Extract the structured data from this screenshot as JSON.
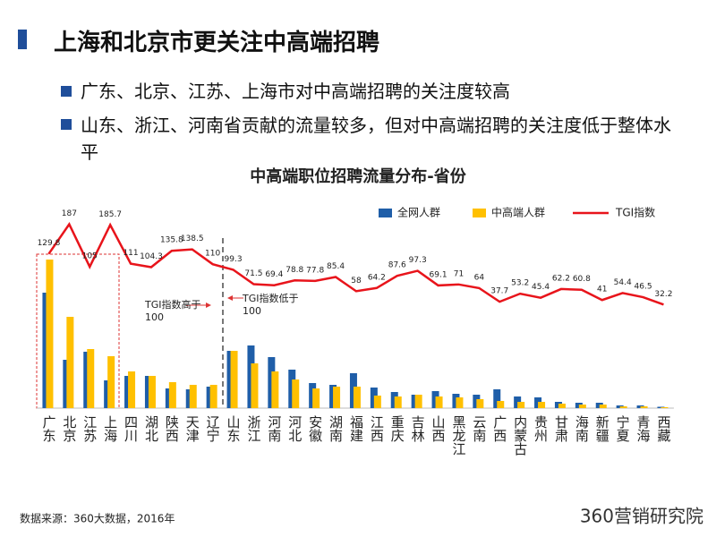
{
  "header": {
    "title": "上海和北京市更关注中高端招聘",
    "bullets": [
      "广东、北京、江苏、上海市对中高端招聘的关注度较高",
      "山东、浙江、河南省贡献的流量较多，但对中高端招聘的关注度低于整体水平"
    ]
  },
  "chart_data": {
    "type": "bar",
    "title": "中高端职位招聘流量分布-省份",
    "categories": [
      "广东",
      "北京",
      "江苏",
      "上海",
      "四川",
      "湖北",
      "陕西",
      "天津",
      "辽宁",
      "山东",
      "浙江",
      "河南",
      "河北",
      "安徽",
      "湖南",
      "福建",
      "江西",
      "重庆",
      "吉林",
      "山西",
      "黑龙江",
      "云南",
      "广西",
      "内蒙古",
      "贵州",
      "甘肃",
      "海南",
      "新疆",
      "宁夏",
      "青海",
      "西藏"
    ],
    "series": [
      {
        "name": "全网人群",
        "color": "#1f5ea8",
        "values": [
          129,
          54,
          63,
          31,
          36,
          36,
          22,
          21,
          24,
          64,
          70,
          57,
          43,
          28,
          26,
          39,
          23,
          18,
          15,
          19,
          16,
          15,
          21,
          13,
          12,
          7,
          6,
          6,
          3,
          3,
          1.5
        ]
      },
      {
        "name": "中高端人群",
        "color": "#ffc000",
        "values": [
          166,
          102,
          66,
          58,
          41,
          36,
          29,
          26,
          26,
          64,
          50,
          41,
          32,
          22,
          24,
          24,
          14,
          13,
          15,
          13,
          12,
          10,
          8,
          7,
          7,
          5,
          4,
          4,
          2,
          2,
          1
        ]
      },
      {
        "name": "TGI指数",
        "color": "#e8141b",
        "type": "line",
        "axis": "y2",
        "values": [
          129.8,
          187.0,
          105.0,
          185.7,
          111.0,
          104.3,
          135.8,
          138.5,
          110.0,
          99.3,
          71.5,
          69.4,
          78.8,
          77.8,
          85.4,
          58.0,
          64.2,
          87.6,
          97.3,
          69.1,
          71.0,
          64.0,
          37.7,
          53.2,
          45.4,
          62.2,
          60.8,
          41.0,
          54.4,
          46.5,
          32.2
        ]
      }
    ],
    "ylim": [
      0,
      200
    ],
    "y2lim": [
      0,
      200
    ],
    "annotations": [
      "TGI指数高于100",
      "TGI指数低于100"
    ],
    "source": "数据来源：360大数据，2016年"
  },
  "footer": {
    "logo": "360营销研究院"
  }
}
